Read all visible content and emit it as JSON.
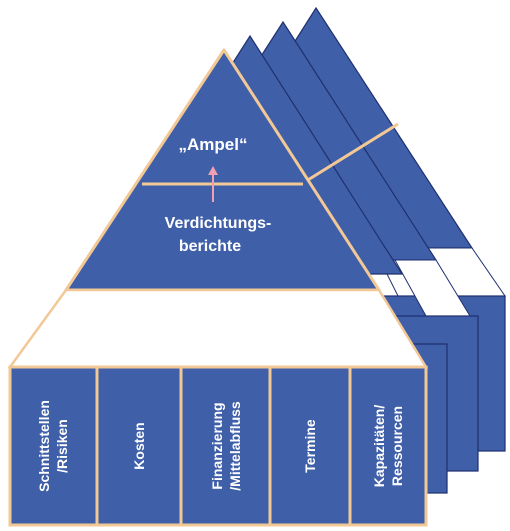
{
  "pyramid": {
    "top_label": "„Ampel“",
    "middle_label_line1": "Verdichtungs-",
    "middle_label_line2": "berichte",
    "columns": [
      {
        "line1": "Schnittstellen",
        "line2": "/Risiken"
      },
      {
        "line1": "Kosten",
        "line2": ""
      },
      {
        "line1": "Finanzierung",
        "line2": "/Mittelabfluss"
      },
      {
        "line1": "Termine",
        "line2": ""
      },
      {
        "line1": "Kapazitäten/",
        "line2": "Ressourcen"
      }
    ]
  },
  "colors": {
    "fill": "#3f5fa8",
    "outline": "#f2c896",
    "back_outline": "#1f3070",
    "arrow": "#f0a0b0",
    "text": "#ffffff"
  }
}
